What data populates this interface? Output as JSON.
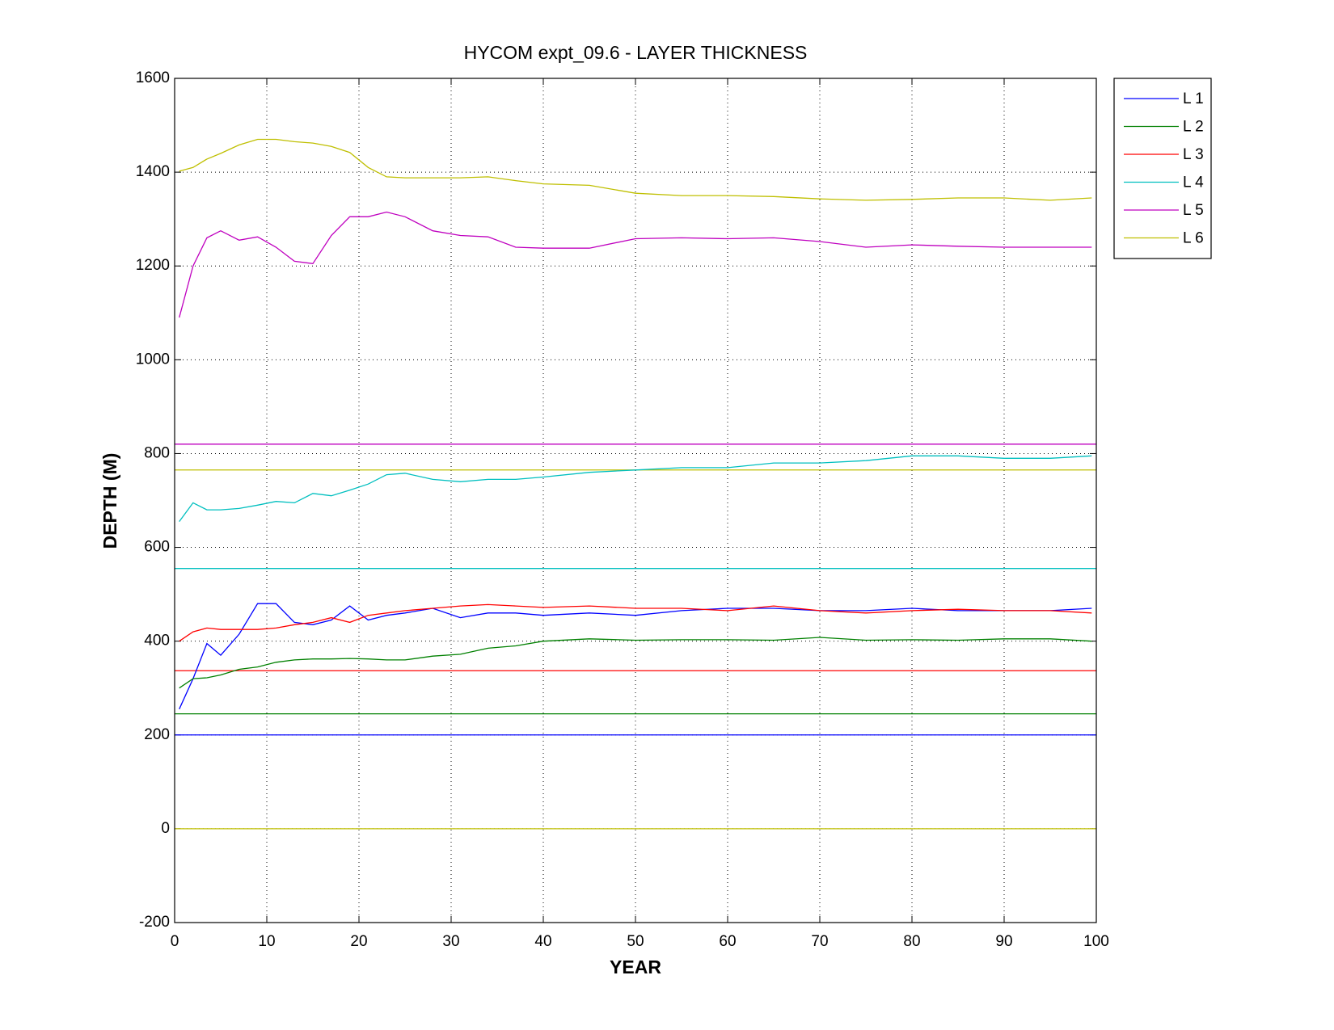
{
  "chart_data": {
    "type": "line",
    "title": "HYCOM expt_09.6 - LAYER THICKNESS",
    "x_label": "YEAR",
    "y_label": "DEPTH (M)",
    "xlim": [
      0,
      100
    ],
    "ylim": [
      -200,
      1600
    ],
    "xticks": [
      0,
      10,
      20,
      30,
      40,
      50,
      60,
      70,
      80,
      90,
      100
    ],
    "yticks": [
      -200,
      0,
      200,
      400,
      600,
      800,
      1000,
      1200,
      1400,
      1600
    ],
    "grid": true,
    "legend": "outside-right",
    "x": [
      0.5,
      2,
      3.5,
      5,
      7,
      9,
      11,
      13,
      15,
      17,
      19,
      21,
      23,
      25,
      28,
      31,
      34,
      37,
      40,
      45,
      50,
      55,
      60,
      65,
      70,
      75,
      80,
      85,
      90,
      95,
      99.5
    ],
    "series": [
      {
        "name": "L 1",
        "color": "#0000ff",
        "values": [
          255,
          320,
          395,
          370,
          415,
          480,
          480,
          440,
          435,
          445,
          475,
          445,
          455,
          460,
          470,
          450,
          460,
          460,
          455,
          460,
          455,
          465,
          470,
          470,
          465,
          465,
          470,
          465,
          465,
          465,
          470
        ]
      },
      {
        "name": "L 2",
        "color": "#008000",
        "values": [
          300,
          320,
          322,
          328,
          340,
          345,
          355,
          360,
          362,
          362,
          363,
          362,
          360,
          360,
          368,
          372,
          385,
          390,
          400,
          405,
          402,
          403,
          403,
          402,
          408,
          402,
          403,
          402,
          405,
          405,
          400
        ]
      },
      {
        "name": "L 3",
        "color": "#ff0000",
        "values": [
          400,
          420,
          428,
          425,
          425,
          425,
          428,
          435,
          440,
          450,
          440,
          455,
          460,
          465,
          470,
          475,
          478,
          475,
          472,
          475,
          470,
          470,
          465,
          475,
          465,
          460,
          465,
          468,
          465,
          465,
          460
        ]
      },
      {
        "name": "L 4",
        "color": "#00bfbf",
        "values": [
          655,
          695,
          680,
          680,
          683,
          690,
          698,
          695,
          715,
          710,
          722,
          735,
          755,
          758,
          745,
          740,
          745,
          745,
          750,
          760,
          765,
          770,
          770,
          780,
          780,
          785,
          795,
          795,
          790,
          790,
          795
        ]
      },
      {
        "name": "L 5",
        "color": "#bf00bf",
        "values": [
          1090,
          1200,
          1260,
          1275,
          1255,
          1262,
          1240,
          1210,
          1205,
          1265,
          1305,
          1305,
          1315,
          1305,
          1275,
          1265,
          1262,
          1240,
          1238,
          1238,
          1258,
          1260,
          1258,
          1260,
          1252,
          1240,
          1245,
          1242,
          1240,
          1240,
          1240
        ]
      },
      {
        "name": "L 6",
        "color": "#bfbf00",
        "values": [
          1402,
          1410,
          1428,
          1440,
          1458,
          1470,
          1470,
          1465,
          1462,
          1455,
          1442,
          1410,
          1390,
          1388,
          1388,
          1388,
          1390,
          1382,
          1375,
          1372,
          1355,
          1350,
          1350,
          1348,
          1343,
          1340,
          1342,
          1345,
          1345,
          1340,
          1345
        ]
      }
    ],
    "hlines": [
      {
        "value": 200,
        "color": "#0000ff"
      },
      {
        "value": 245,
        "color": "#008000"
      },
      {
        "value": 337,
        "color": "#ff0000"
      },
      {
        "value": 555,
        "color": "#00bfbf"
      },
      {
        "value": 820,
        "color": "#bf00bf"
      },
      {
        "value": 765,
        "color": "#bfbf00"
      },
      {
        "value": 0,
        "color": "#bfbf00"
      }
    ]
  }
}
